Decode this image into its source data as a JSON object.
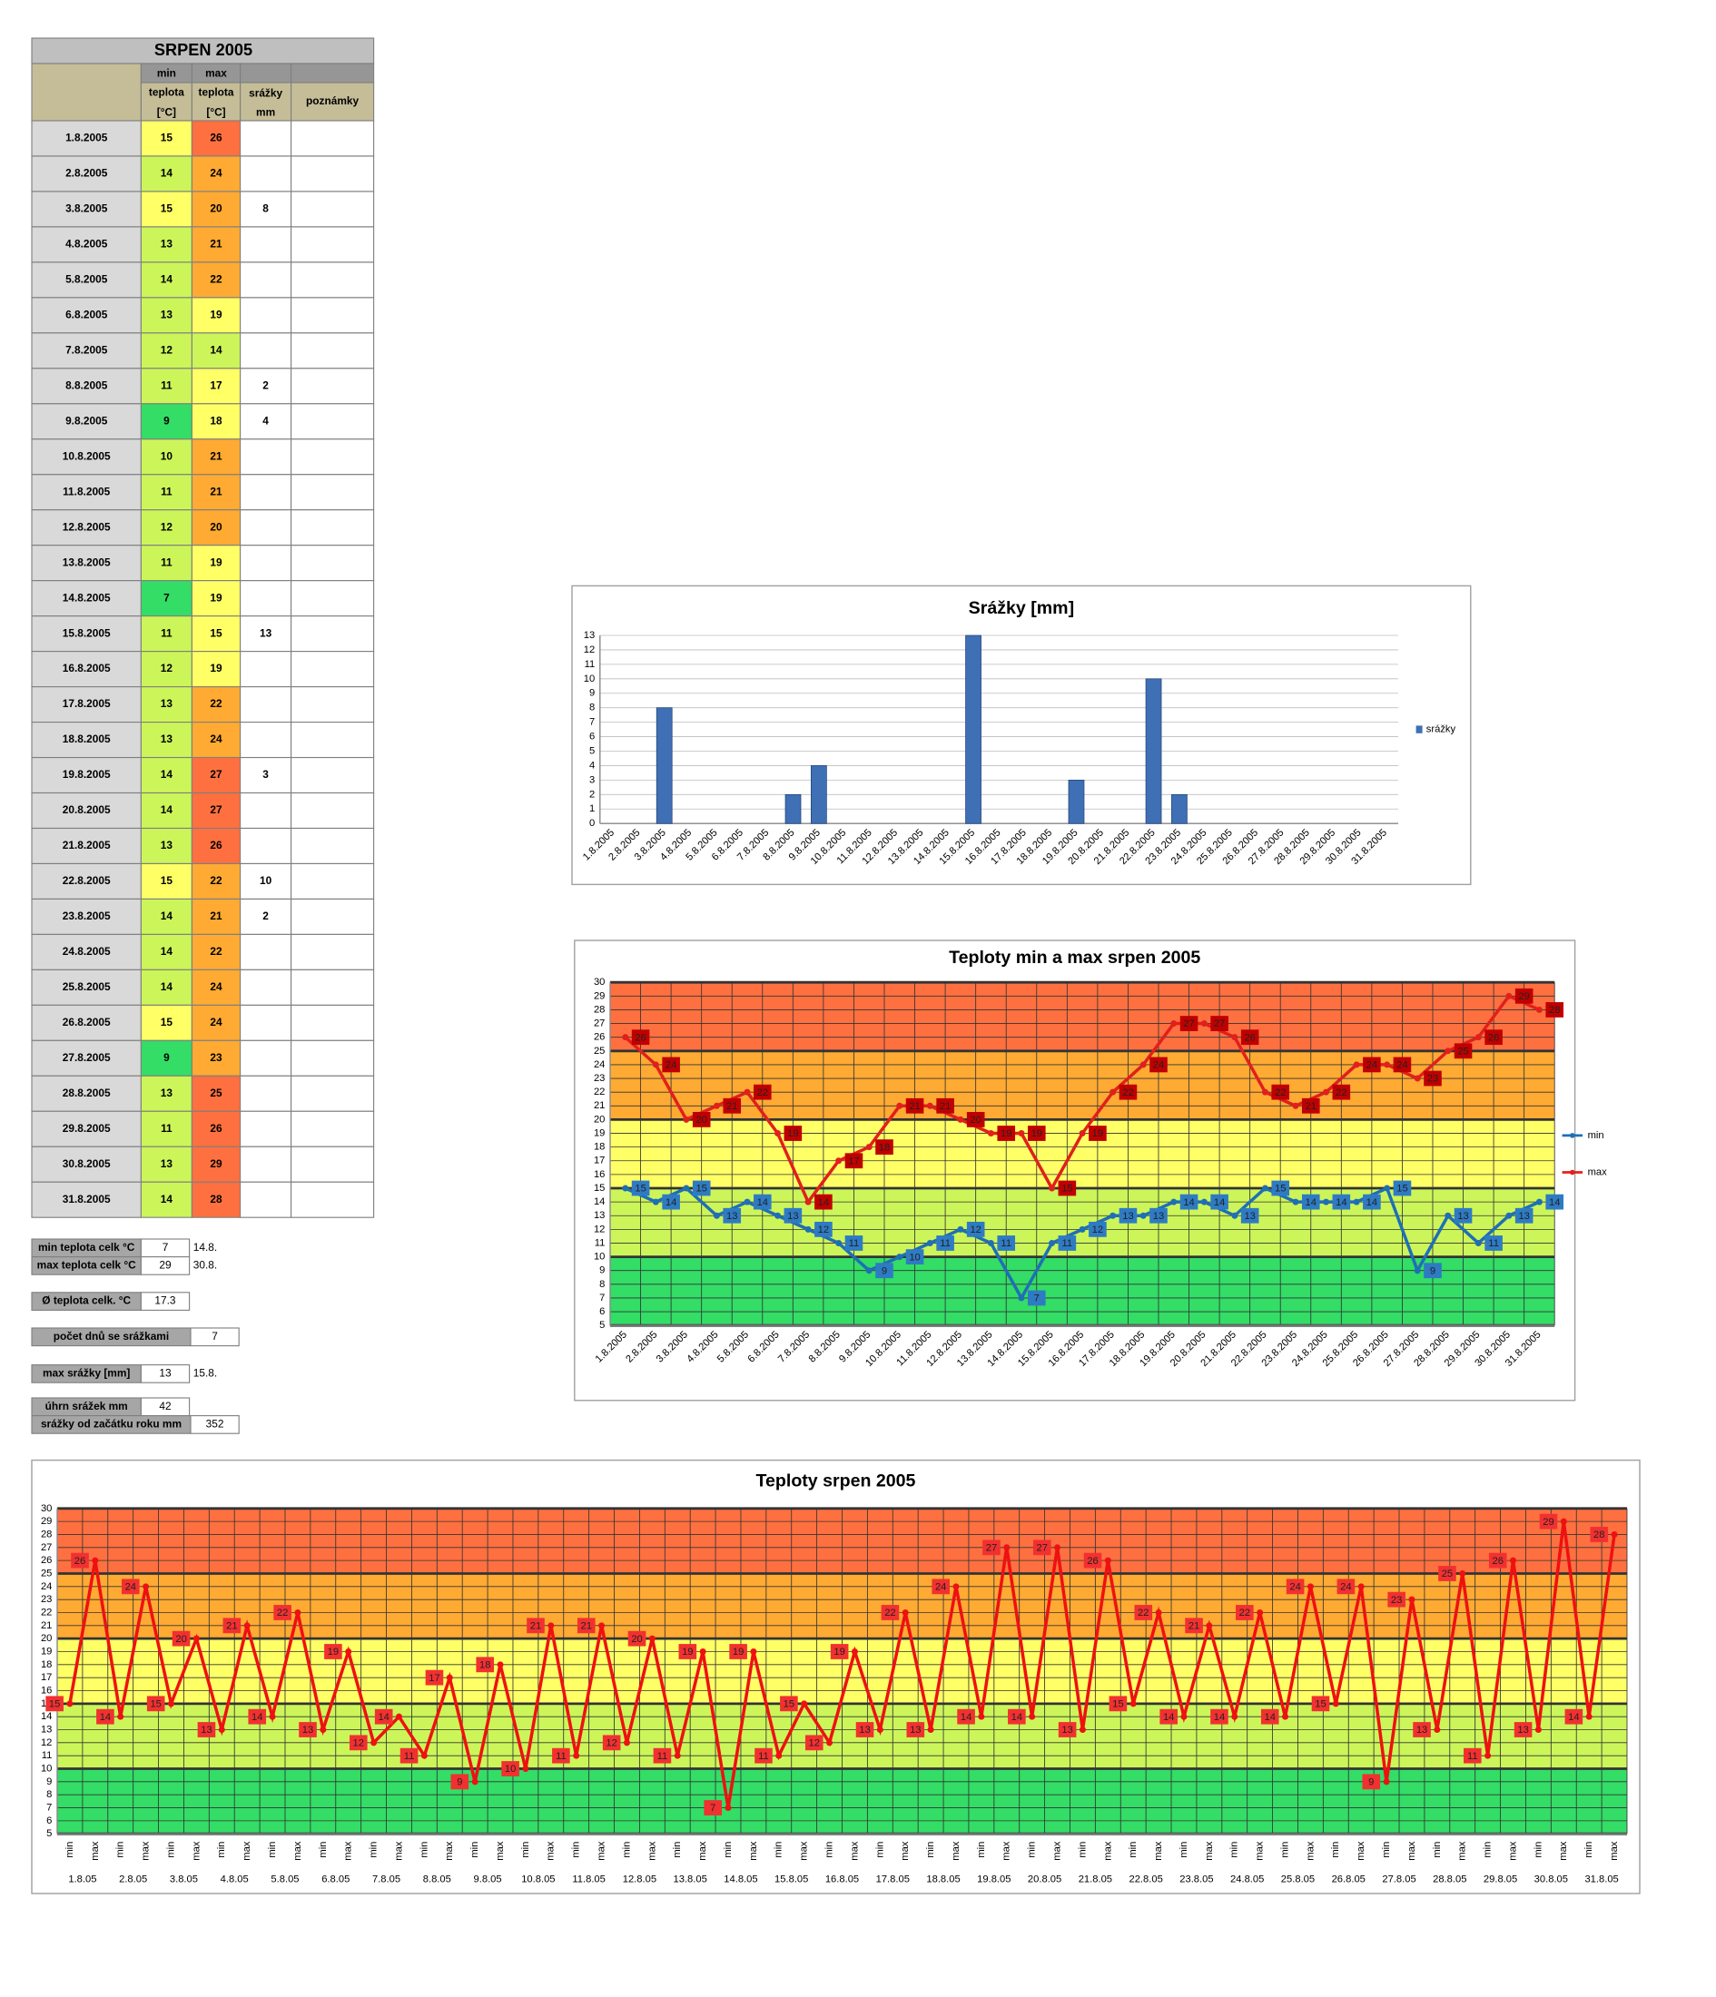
{
  "table": {
    "title": "SRPEN 2005",
    "header": [
      [
        "min",
        "teplota",
        "[°C]"
      ],
      [
        "max",
        "teplota",
        "[°C]"
      ],
      [
        "srážky",
        "mm"
      ],
      [
        "poznámky"
      ]
    ],
    "rows": [
      [
        "1.8.2005",
        15,
        26,
        null
      ],
      [
        "2.8.2005",
        14,
        24,
        null
      ],
      [
        "3.8.2005",
        15,
        20,
        8
      ],
      [
        "4.8.2005",
        13,
        21,
        null
      ],
      [
        "5.8.2005",
        14,
        22,
        null
      ],
      [
        "6.8.2005",
        13,
        19,
        null
      ],
      [
        "7.8.2005",
        12,
        14,
        null
      ],
      [
        "8.8.2005",
        11,
        17,
        2
      ],
      [
        "9.8.2005",
        9,
        18,
        4
      ],
      [
        "10.8.2005",
        10,
        21,
        null
      ],
      [
        "11.8.2005",
        11,
        21,
        null
      ],
      [
        "12.8.2005",
        12,
        20,
        null
      ],
      [
        "13.8.2005",
        11,
        19,
        null
      ],
      [
        "14.8.2005",
        7,
        19,
        null
      ],
      [
        "15.8.2005",
        11,
        15,
        13
      ],
      [
        "16.8.2005",
        12,
        19,
        null
      ],
      [
        "17.8.2005",
        13,
        22,
        null
      ],
      [
        "18.8.2005",
        13,
        24,
        null
      ],
      [
        "19.8.2005",
        14,
        27,
        3
      ],
      [
        "20.8.2005",
        14,
        27,
        null
      ],
      [
        "21.8.2005",
        13,
        26,
        null
      ],
      [
        "22.8.2005",
        15,
        22,
        10
      ],
      [
        "23.8.2005",
        14,
        21,
        2
      ],
      [
        "24.8.2005",
        14,
        22,
        null
      ],
      [
        "25.8.2005",
        14,
        24,
        null
      ],
      [
        "26.8.2005",
        15,
        24,
        null
      ],
      [
        "27.8.2005",
        9,
        23,
        null
      ],
      [
        "28.8.2005",
        13,
        25,
        null
      ],
      [
        "29.8.2005",
        11,
        26,
        null
      ],
      [
        "30.8.2005",
        13,
        29,
        null
      ],
      [
        "31.8.2005",
        14,
        28,
        null
      ]
    ]
  },
  "summary": [
    {
      "label": "min teplota celk °C",
      "value": 7,
      "extra": "14.8."
    },
    {
      "label": "max teplota celk °C",
      "value": 29,
      "extra": "30.8."
    },
    {
      "label": "Ø teplota celk. °C",
      "value": 17.3
    },
    {
      "label": "počet dnů se srážkami",
      "value": 7
    },
    {
      "label": "max srážky [mm]",
      "value": 13,
      "extra": "15.8."
    },
    {
      "label": "úhrn srážek  mm",
      "value": 42
    },
    {
      "label": "srážky od začátku roku mm",
      "value": 352
    }
  ],
  "chart_data": [
    {
      "type": "bar",
      "title": "Srážky [mm]",
      "categories": [
        "1.8.2005",
        "2.8.2005",
        "3.8.2005",
        "4.8.2005",
        "5.8.2005",
        "6.8.2005",
        "7.8.2005",
        "8.8.2005",
        "9.8.2005",
        "10.8.2005",
        "11.8.2005",
        "12.8.2005",
        "13.8.2005",
        "14.8.2005",
        "15.8.2005",
        "16.8.2005",
        "17.8.2005",
        "18.8.2005",
        "19.8.2005",
        "20.8.2005",
        "21.8.2005",
        "22.8.2005",
        "23.8.2005",
        "24.8.2005",
        "25.8.2005",
        "26.8.2005",
        "27.8.2005",
        "28.8.2005",
        "29.8.2005",
        "30.8.2005",
        "31.8.2005"
      ],
      "series": [
        {
          "name": "srážky",
          "color": "#3f6fb4",
          "values": [
            null,
            null,
            8,
            null,
            null,
            null,
            null,
            2,
            4,
            null,
            null,
            null,
            null,
            null,
            13,
            null,
            null,
            null,
            3,
            null,
            null,
            10,
            2,
            null,
            null,
            null,
            null,
            null,
            null,
            null,
            null
          ]
        }
      ],
      "ylim": [
        0,
        13
      ],
      "yticks": [
        0,
        1,
        2,
        3,
        4,
        5,
        6,
        7,
        8,
        9,
        10,
        11,
        12,
        13
      ],
      "grid": true,
      "legend": "right"
    },
    {
      "type": "line",
      "title": "Teploty min a max srpen 2005",
      "categories": [
        "1.8.2005",
        "2.8.2005",
        "3.8.2005",
        "4.8.2005",
        "5.8.2005",
        "6.8.2005",
        "7.8.2005",
        "8.8.2005",
        "9.8.2005",
        "10.8.2005",
        "11.8.2005",
        "12.8.2005",
        "13.8.2005",
        "14.8.2005",
        "15.8.2005",
        "16.8.2005",
        "17.8.2005",
        "18.8.2005",
        "19.8.2005",
        "20.8.2005",
        "21.8.2005",
        "22.8.2005",
        "23.8.2005",
        "24.8.2005",
        "25.8.2005",
        "26.8.2005",
        "27.8.2005",
        "28.8.2005",
        "29.8.2005",
        "30.8.2005",
        "31.8.2005"
      ],
      "series": [
        {
          "name": "min",
          "color": "#1f6fb5",
          "label_color": "#2e7bc4",
          "values": [
            15,
            14,
            15,
            13,
            14,
            13,
            12,
            11,
            9,
            10,
            11,
            12,
            11,
            7,
            11,
            12,
            13,
            13,
            14,
            14,
            13,
            15,
            14,
            14,
            14,
            15,
            9,
            13,
            11,
            13,
            14
          ]
        },
        {
          "name": "max",
          "color": "#e0201c",
          "label_color": "#c00000",
          "values": [
            26,
            24,
            20,
            21,
            22,
            19,
            14,
            17,
            18,
            21,
            21,
            20,
            19,
            19,
            15,
            19,
            22,
            24,
            27,
            27,
            26,
            22,
            21,
            22,
            24,
            24,
            23,
            25,
            26,
            29,
            28
          ]
        }
      ],
      "ylim": [
        5,
        30
      ],
      "yticks": [
        5,
        6,
        7,
        8,
        9,
        10,
        11,
        12,
        13,
        14,
        15,
        16,
        17,
        18,
        19,
        20,
        21,
        22,
        23,
        24,
        25,
        26,
        27,
        28,
        29,
        30
      ],
      "grid": true,
      "vgrid": true,
      "legend": "right",
      "data_labels": true,
      "bands": [
        {
          "from": 5,
          "to": 10,
          "color": "#33dd66"
        },
        {
          "from": 10,
          "to": 15,
          "color": "#ccf55a"
        },
        {
          "from": 15,
          "to": 20,
          "color": "#ffff66"
        },
        {
          "from": 20,
          "to": 25,
          "color": "#ffaa33"
        },
        {
          "from": 25,
          "to": 30,
          "color": "#ff7040"
        }
      ]
    },
    {
      "type": "line",
      "title": "Teploty srpen 2005",
      "categories": [
        "min",
        "max",
        "min",
        "max",
        "min",
        "max",
        "min",
        "max",
        "min",
        "max",
        "min",
        "max",
        "min",
        "max",
        "min",
        "max",
        "min",
        "max",
        "min",
        "max",
        "min",
        "max",
        "min",
        "max",
        "min",
        "max",
        "min",
        "max",
        "min",
        "max",
        "min",
        "max",
        "min",
        "max",
        "min",
        "max",
        "min",
        "max",
        "min",
        "max",
        "min",
        "max",
        "min",
        "max",
        "min",
        "max",
        "min",
        "max",
        "min",
        "max",
        "min",
        "max",
        "min",
        "max",
        "min",
        "max",
        "min",
        "max",
        "min",
        "max",
        "min",
        "max"
      ],
      "groups": [
        "1.8.05",
        "2.8.05",
        "3.8.05",
        "4.8.05",
        "5.8.05",
        "6.8.05",
        "7.8.05",
        "8.8.05",
        "9.8.05",
        "10.8.05",
        "11.8.05",
        "12.8.05",
        "13.8.05",
        "14.8.05",
        "15.8.05",
        "16.8.05",
        "17.8.05",
        "18.8.05",
        "19.8.05",
        "20.8.05",
        "21.8.05",
        "22.8.05",
        "23.8.05",
        "24.8.05",
        "25.8.05",
        "26.8.05",
        "27.8.05",
        "28.8.05",
        "29.8.05",
        "30.8.05",
        "31.8.05"
      ],
      "series": [
        {
          "color": "#ee1111",
          "label_color": "#f23030",
          "values": [
            15,
            26,
            14,
            24,
            15,
            20,
            13,
            21,
            14,
            22,
            13,
            19,
            12,
            14,
            11,
            17,
            9,
            18,
            10,
            21,
            11,
            21,
            12,
            20,
            11,
            19,
            7,
            19,
            11,
            15,
            12,
            19,
            13,
            22,
            13,
            24,
            14,
            27,
            14,
            27,
            13,
            26,
            15,
            22,
            14,
            21,
            14,
            22,
            14,
            24,
            15,
            24,
            9,
            23,
            13,
            25,
            11,
            26,
            13,
            29,
            14,
            28
          ]
        }
      ],
      "ylim": [
        5,
        30
      ],
      "yticks": [
        5,
        6,
        7,
        8,
        9,
        10,
        11,
        12,
        13,
        14,
        15,
        16,
        17,
        18,
        19,
        20,
        21,
        22,
        23,
        24,
        25,
        26,
        27,
        28,
        29,
        30
      ],
      "grid": true,
      "vgrid": true,
      "data_labels": true,
      "bands": [
        {
          "from": 5,
          "to": 10,
          "color": "#33dd66"
        },
        {
          "from": 10,
          "to": 15,
          "color": "#ccf55a"
        },
        {
          "from": 15,
          "to": 20,
          "color": "#ffff66"
        },
        {
          "from": 20,
          "to": 25,
          "color": "#ffaa33"
        },
        {
          "from": 25,
          "to": 30,
          "color": "#ff7040"
        }
      ]
    }
  ]
}
